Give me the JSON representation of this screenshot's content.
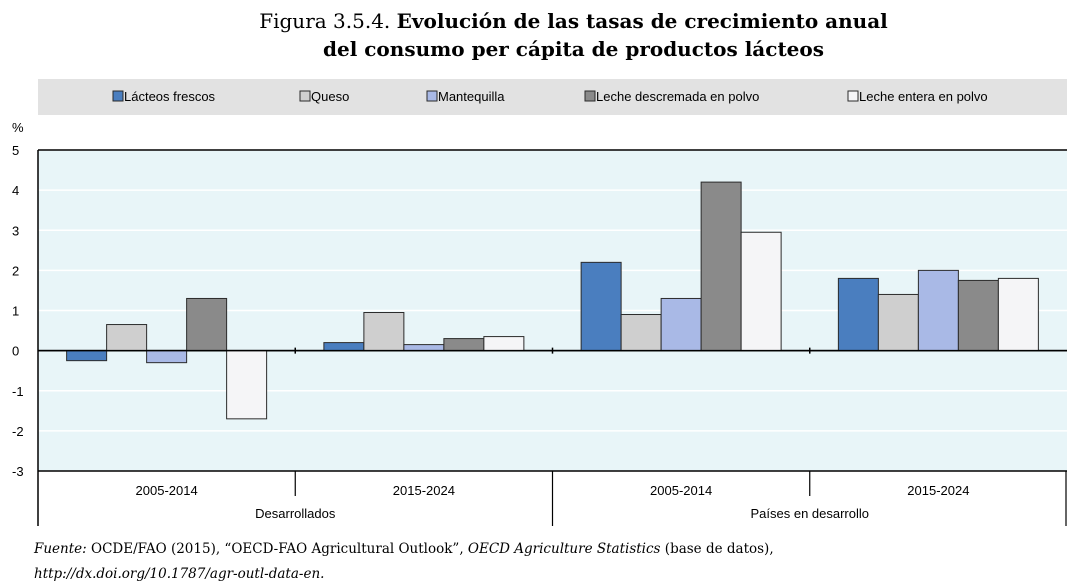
{
  "title": {
    "prefix": "Figura 3.5.4.",
    "line1": "Evolución de las tasas de crecimiento anual",
    "line2": "del consumo per cápita de productos lácteos"
  },
  "source": {
    "label": "Fuente:",
    "text_a": "OCDE/FAO (2015), “OECD-FAO Agricultural Outlook”,",
    "text_b": "OECD Agriculture Statistics",
    "text_c": "(base de datos),",
    "url": "http://dx.doi.org/10.1787/agr-outl-data-en."
  },
  "chart_data": {
    "type": "bar",
    "ylabel": "%",
    "ylim": [
      -3,
      5
    ],
    "yticks": [
      "5",
      "4",
      "3",
      "2",
      "1",
      "0",
      "-1",
      "-2",
      "-3"
    ],
    "legend_position": "top",
    "groups": [
      "Desarrollados",
      "Países en desarrollo"
    ],
    "categories": [
      "2005-2014",
      "2015-2024",
      "2005-2014",
      "2015-2024"
    ],
    "colors": {
      "plot_bg": "#e8f5f8",
      "legend_bg": "#e2e2e2"
    },
    "series": [
      {
        "name": "Lácteos frescos",
        "color": "#4a7ebf",
        "values": [
          -0.25,
          0.2,
          2.2,
          1.8
        ]
      },
      {
        "name": "Queso",
        "color": "#cfcfcf",
        "values": [
          0.65,
          0.95,
          0.9,
          1.4
        ]
      },
      {
        "name": "Mantequilla",
        "color": "#a9b9e6",
        "values": [
          -0.3,
          0.15,
          1.3,
          2.0
        ]
      },
      {
        "name": "Leche descremada en polvo",
        "color": "#8a8a8a",
        "values": [
          1.3,
          0.3,
          4.2,
          1.75
        ]
      },
      {
        "name": "Leche entera en polvo",
        "color": "#f5f5f7",
        "values": [
          -1.7,
          0.35,
          2.95,
          1.8
        ]
      }
    ]
  }
}
